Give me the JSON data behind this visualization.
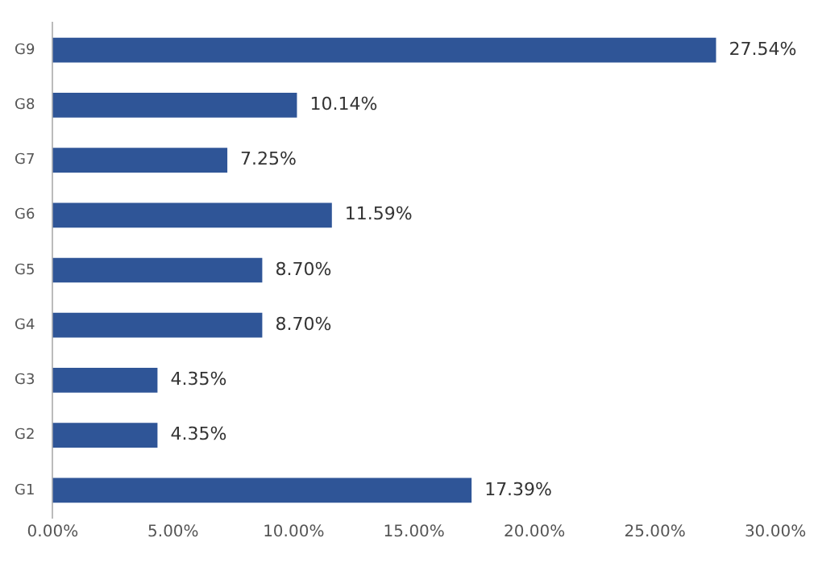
{
  "chart_data": {
    "type": "bar",
    "orientation": "horizontal",
    "categories": [
      "G9",
      "G8",
      "G7",
      "G6",
      "G5",
      "G4",
      "G3",
      "G2",
      "G1"
    ],
    "values": [
      27.54,
      10.14,
      7.25,
      11.59,
      8.7,
      8.7,
      4.35,
      4.35,
      17.39
    ],
    "value_labels": [
      "27.54%",
      "10.14%",
      "7.25%",
      "11.59%",
      "8.70%",
      "8.70%",
      "4.35%",
      "4.35%",
      "17.39%"
    ],
    "color": "#2f5597",
    "xlim": [
      0,
      30
    ],
    "xticks": [
      {
        "value": 0,
        "label": "0.00%"
      },
      {
        "value": 5,
        "label": "5.00%"
      },
      {
        "value": 10,
        "label": "10.00%"
      },
      {
        "value": 15,
        "label": "15.00%"
      },
      {
        "value": 20,
        "label": "20.00%"
      },
      {
        "value": 25,
        "label": "25.00%"
      },
      {
        "value": 30,
        "label": "30.00%"
      }
    ],
    "grid": false,
    "legend": false
  }
}
